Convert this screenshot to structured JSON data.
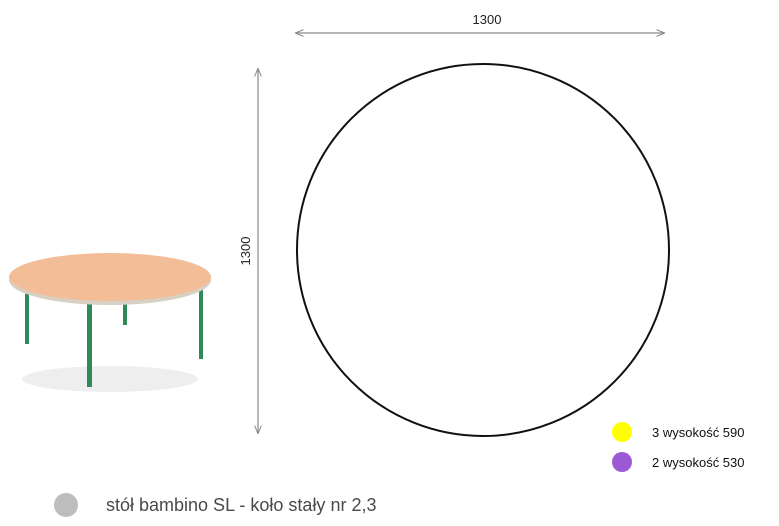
{
  "dimensions": {
    "width_label": "1300",
    "height_label": "1300"
  },
  "legend": [
    {
      "label": "3 wysokość 590",
      "color": "#ffff00"
    },
    {
      "label": "2 wysokość 530",
      "color": "#9b59d6"
    }
  ],
  "caption": {
    "text": "stół bambino SL - koło stały nr 2,3",
    "dot_color": "#bdbdbd"
  },
  "colors": {
    "line": "#111111",
    "dimension": "#8a8a8a",
    "tabletop": "#f2bd97",
    "legs": "#2f8a5a"
  },
  "product": {
    "icon": "round-table-image"
  }
}
